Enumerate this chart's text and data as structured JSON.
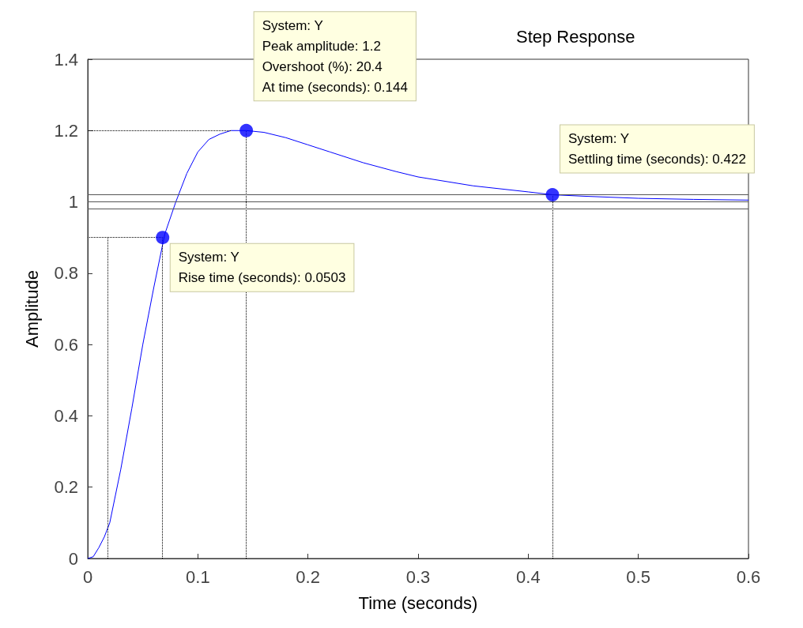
{
  "chart_data": {
    "type": "line",
    "title": "Step Response",
    "xlabel": "Time (seconds)",
    "ylabel": "Amplitude",
    "xlim": [
      0,
      0.6
    ],
    "ylim": [
      0,
      1.4
    ],
    "xticks": [
      0,
      0.1,
      0.2,
      0.3,
      0.4,
      0.5,
      0.6
    ],
    "yticks": [
      0,
      0.2,
      0.4,
      0.6,
      0.8,
      1,
      1.2,
      1.4
    ],
    "grid": false,
    "series": [
      {
        "color": "#0000ff",
        "marker": "none",
        "x": [
          0,
          0.005,
          0.01,
          0.015,
          0.02,
          0.03,
          0.04,
          0.05,
          0.06,
          0.07,
          0.08,
          0.09,
          0.1,
          0.11,
          0.12,
          0.13,
          0.144,
          0.16,
          0.18,
          0.2,
          0.22,
          0.25,
          0.28,
          0.3,
          0.35,
          0.4,
          0.422,
          0.45,
          0.5,
          0.55,
          0.6
        ],
        "values": [
          0,
          0.005,
          0.03,
          0.06,
          0.1,
          0.25,
          0.42,
          0.6,
          0.76,
          0.91,
          1.0,
          1.08,
          1.14,
          1.175,
          1.19,
          1.2,
          1.2,
          1.195,
          1.18,
          1.16,
          1.14,
          1.11,
          1.085,
          1.07,
          1.045,
          1.028,
          1.02,
          1.016,
          1.01,
          1.007,
          1.005
        ]
      },
      {
        "type": "scatter",
        "color": "#0000ff",
        "marker": "circle",
        "x": [
          0.068,
          0.144,
          0.422
        ],
        "values": [
          0.9,
          1.2,
          1.02
        ]
      }
    ],
    "ref_lines": [
      {
        "axis": "x",
        "value": 0.018,
        "color": "#000000",
        "line_style": "dotted"
      },
      {
        "axis": "x",
        "value": 0.068,
        "color": "#000000",
        "line_style": "dotted"
      },
      {
        "axis": "x",
        "value": 0.144,
        "color": "#000000",
        "line_style": "dotted"
      },
      {
        "axis": "x",
        "value": 0.422,
        "color": "#000000",
        "line_style": "dotted"
      },
      {
        "axis": "y",
        "value": 0.9,
        "color": "#000000",
        "line_style": "dotted"
      },
      {
        "axis": "y",
        "value": 1.2,
        "color": "#000000",
        "line_style": "dotted"
      },
      {
        "axis": "y",
        "value": 1.02,
        "color": "#555555",
        "line_style": "solid"
      },
      {
        "axis": "y",
        "value": 1,
        "color": "#555555",
        "line_style": "solid"
      },
      {
        "axis": "y",
        "value": 0.98,
        "color": "#555555",
        "line_style": "solid"
      }
    ],
    "annotations": [
      {
        "text": "System: Y\nPeak amplitude: 1.2\nOvershoot (%): 20.4\nAt time (seconds): 0.144",
        "x": 0.144,
        "y": 1.2
      },
      {
        "text": "System: Y\nSettling time (seconds): 0.422",
        "x": 0.422,
        "y": 1.02
      },
      {
        "text": "System: Y\nRise time (seconds): 0.0503",
        "x": 0.068,
        "y": 0.9
      }
    ]
  }
}
